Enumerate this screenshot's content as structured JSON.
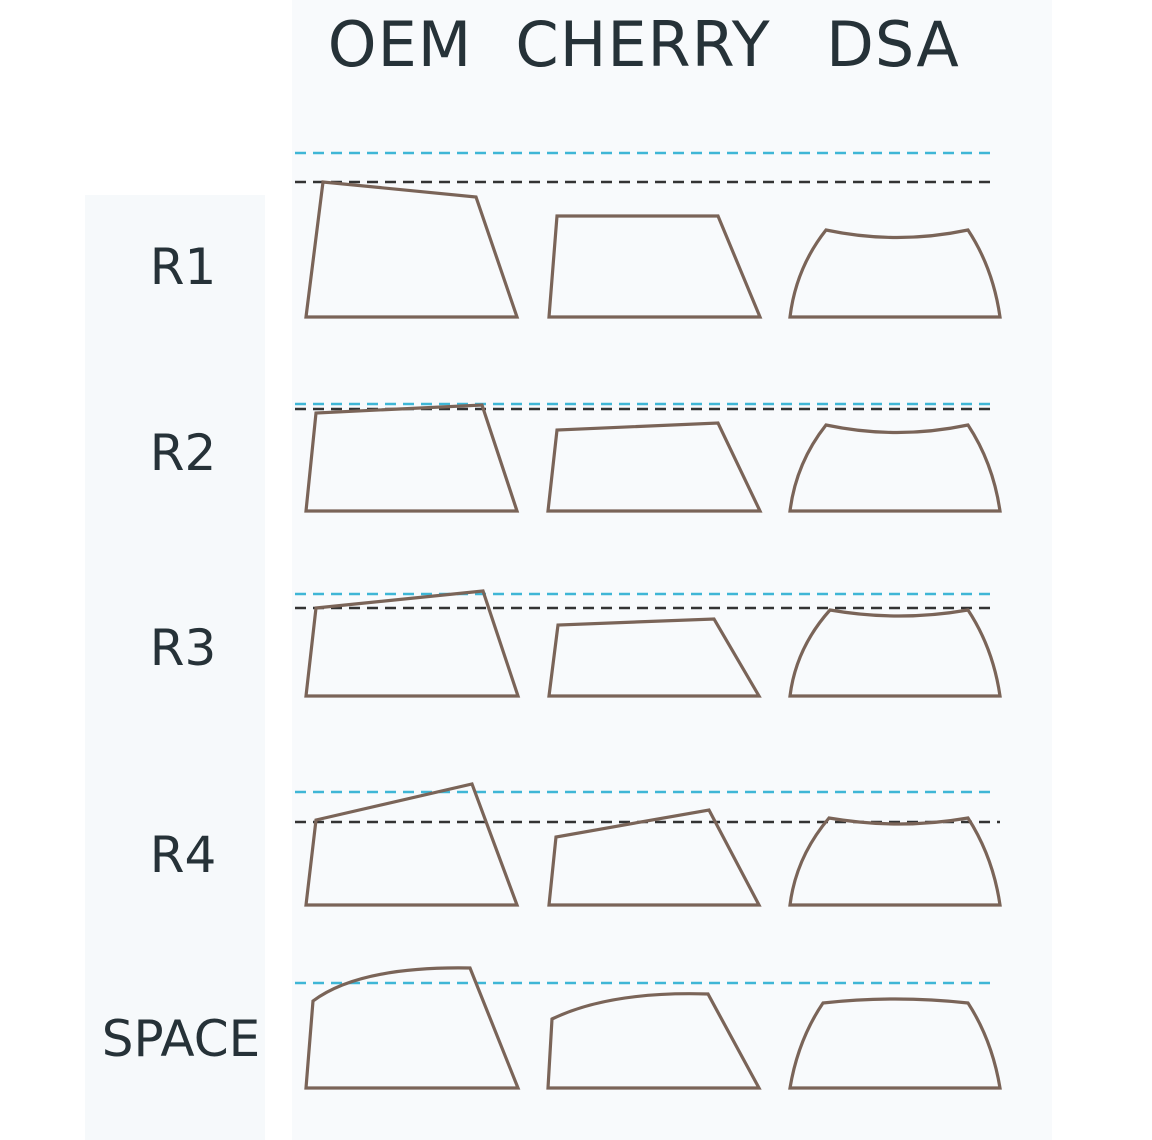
{
  "columns": [
    {
      "id": "oem",
      "label": "OEM"
    },
    {
      "id": "cherry",
      "label": "CHERRY"
    },
    {
      "id": "dsa",
      "label": "DSA"
    }
  ],
  "rows": [
    {
      "id": "r1",
      "label": "R1"
    },
    {
      "id": "r2",
      "label": "R2"
    },
    {
      "id": "r3",
      "label": "R3"
    },
    {
      "id": "r4",
      "label": "R4"
    },
    {
      "id": "space",
      "label": "SPACE"
    }
  ],
  "colors": {
    "outline": "#7a6458",
    "guide_blue": "#3fb6d6",
    "guide_black": "#333333",
    "text": "#263238",
    "panel": "#f6f9fb"
  }
}
